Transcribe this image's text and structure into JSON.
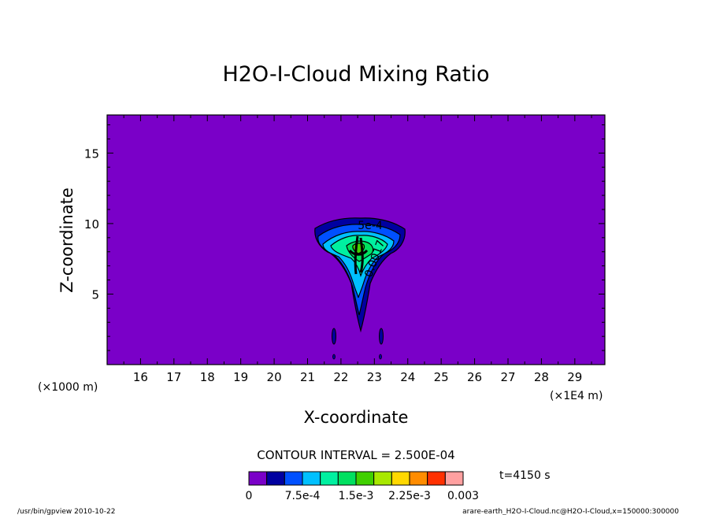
{
  "chart_data": {
    "type": "contour",
    "title": "H2O-I-Cloud Mixing Ratio",
    "xlabel": "X-coordinate",
    "ylabel": "Z-coordinate",
    "x_unit": "(×1E4 m)",
    "y_unit": "(×1000 m)",
    "xlim": [
      15.0,
      29.9
    ],
    "ylim": [
      0.0,
      17.7
    ],
    "x_ticks": [
      16,
      17,
      18,
      19,
      20,
      21,
      22,
      23,
      24,
      25,
      26,
      27,
      28,
      29
    ],
    "y_ticks": [
      5,
      10,
      15
    ],
    "contour_interval_text": "CONTOUR INTERVAL = 2.500E-04",
    "time_text": "t=4150 s",
    "contour_labels": [
      "5e-4",
      "0.0017"
    ],
    "colorbar": {
      "colors": [
        "#7a00c8",
        "#0000a0",
        "#0050ff",
        "#00c0ff",
        "#00f0a0",
        "#00e060",
        "#40d000",
        "#a8e800",
        "#ffd800",
        "#ff8c00",
        "#ff3000",
        "#ffa0a0"
      ],
      "labels": [
        "0",
        "7.5e-4",
        "1.5e-3",
        "2.25e-3",
        "0.003"
      ],
      "label_values": [
        0,
        0.00075,
        0.0015,
        0.00225,
        0.003
      ],
      "range": [
        0,
        0.003
      ]
    },
    "grid": false,
    "background_color": "#7a00c8"
  },
  "footer": {
    "left": "/usr/bin/gpview   2010-10-22",
    "right": "arare-earth_H2O-I-Cloud.nc@H2O-I-Cloud,x=150000:300000"
  }
}
